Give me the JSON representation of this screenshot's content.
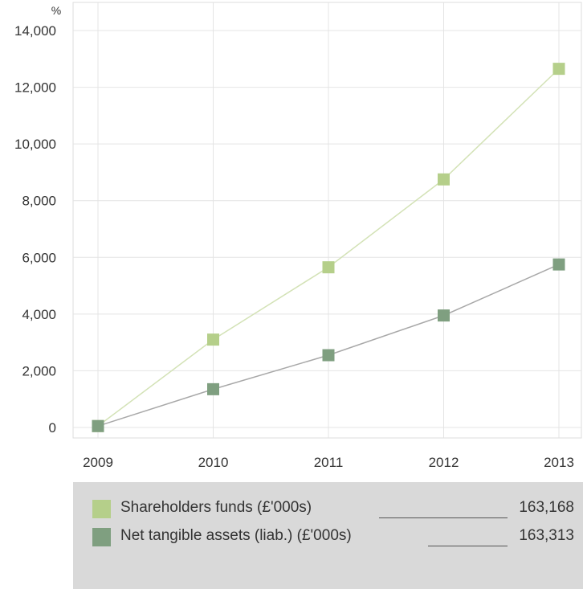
{
  "chart_data": {
    "type": "line",
    "unit": "%",
    "x": [
      "2009",
      "2010",
      "2011",
      "2012",
      "2013"
    ],
    "ylim": [
      0,
      14000
    ],
    "yticks": [
      0,
      2000,
      4000,
      6000,
      8000,
      10000,
      12000,
      14000
    ],
    "ytick_labels": [
      "0",
      "2,000",
      "4,000",
      "6,000",
      "8,000",
      "10,000",
      "12,000",
      "14,000"
    ],
    "grid": true,
    "series": [
      {
        "name": "Shareholders funds (£'000s)",
        "values": [
          50,
          3100,
          5650,
          8750,
          12650
        ],
        "color": "#b5cf8a",
        "line_color": "#d3e2b6",
        "legend_value": "163,168"
      },
      {
        "name": "Net tangible assets (liab.) (£'000s)",
        "values": [
          50,
          1350,
          2550,
          3950,
          5750
        ],
        "color": "#7f9f80",
        "line_color": "#a8a8a8",
        "legend_value": "163,313"
      }
    ]
  }
}
